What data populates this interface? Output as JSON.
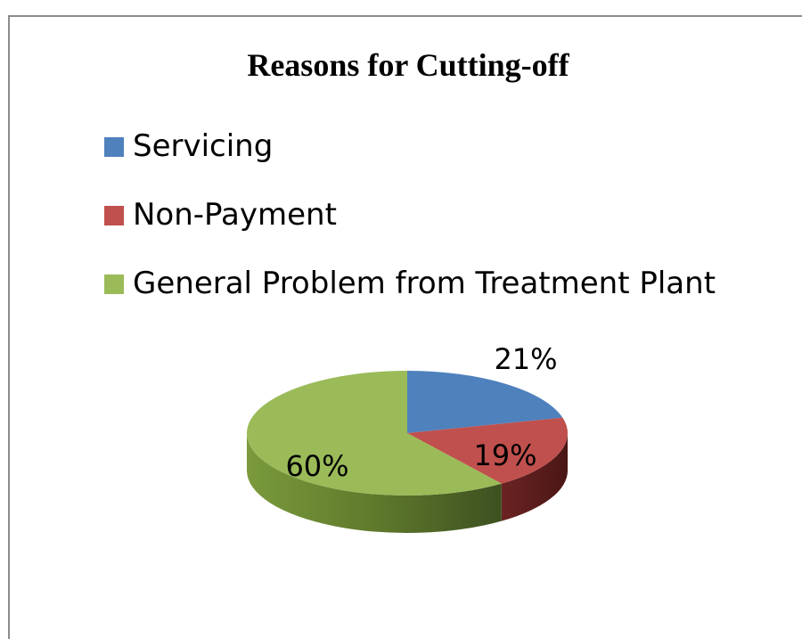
{
  "chart_data": {
    "type": "pie",
    "title": "Reasons for Cutting-off",
    "categories": [
      "Servicing",
      "Non-Payment",
      "General Problem from Treatment Plant"
    ],
    "values": [
      21,
      19,
      60
    ],
    "labels": [
      "21%",
      "19%",
      "60%"
    ],
    "colors": [
      "#4f81bd",
      "#c0504d",
      "#9bbb59"
    ],
    "legend_position": "top-left",
    "style": "3d"
  }
}
